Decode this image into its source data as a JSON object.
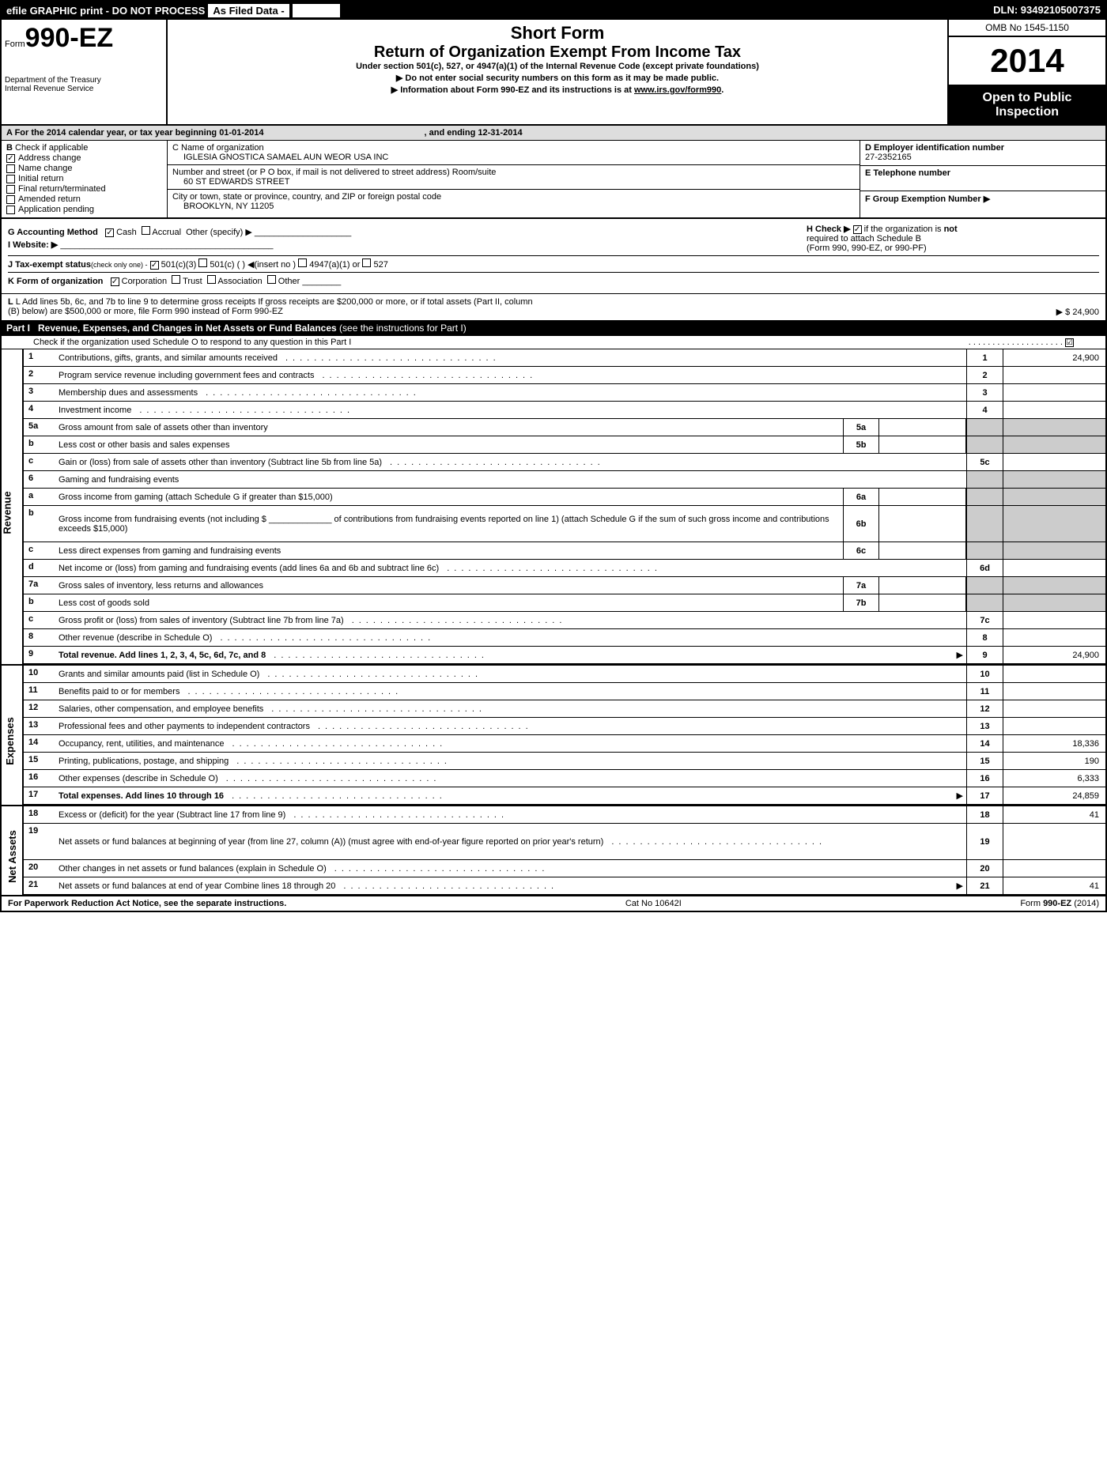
{
  "top_bar": {
    "efile": "efile GRAPHIC print - DO NOT PROCESS",
    "as_filed": "As Filed Data -",
    "dln": "DLN: 93492105007375"
  },
  "header": {
    "form_word": "Form",
    "form_number": "990-EZ",
    "dept1": "Department of the Treasury",
    "dept2": "Internal Revenue Service",
    "short_form": "Short Form",
    "title": "Return of Organization Exempt From Income Tax",
    "subtitle": "Under section 501(c), 527, or 4947(a)(1) of the Internal Revenue Code (except private foundations)",
    "warn1": "▶ Do not enter social security numbers on this form as it may be made public.",
    "warn2_pre": "▶ Information about Form 990-EZ and its instructions is at ",
    "warn2_link": "www.irs.gov/form990",
    "omb": "OMB No 1545-1150",
    "year": "2014",
    "open1": "Open to Public",
    "open2": "Inspection"
  },
  "row_a": {
    "text_left": "A  For the 2014 calendar year, or tax year beginning 01-01-2014",
    "text_right": ", and ending 12-31-2014"
  },
  "col_b": {
    "title": "B",
    "check_if": "Check if applicable",
    "items": [
      "Address change",
      "Name change",
      "Initial return",
      "Final return/terminated",
      "Amended return",
      "Application pending"
    ],
    "checked": [
      true,
      false,
      false,
      false,
      false,
      false
    ]
  },
  "col_c": {
    "name_label": "C Name of organization",
    "name": "IGLESIA GNOSTICA SAMAEL AUN WEOR USA INC",
    "street_label": "Number and street (or P O box, if mail is not delivered to street address) Room/suite",
    "street": "60 ST EDWARDS STREET",
    "city_label": "City or town, state or province, country, and ZIP or foreign postal code",
    "city": "BROOKLYN, NY  11205"
  },
  "col_def": {
    "d_label": "D Employer identification number",
    "d_val": "27-2352165",
    "e_label": "E Telephone number",
    "e_val": "",
    "f_label": "F Group Exemption Number  ▶",
    "f_val": ""
  },
  "middle": {
    "g": "G Accounting Method",
    "g_cash": "Cash",
    "g_accrual": "Accrual",
    "g_other": "Other (specify) ▶",
    "h_pre": "H  Check ▶",
    "h_post": "if the organization is",
    "h_not": "not",
    "h_line2": "required to attach Schedule B",
    "h_line3": "(Form 990, 990-EZ, or 990-PF)",
    "i": "I Website: ▶",
    "j_pre": "J Tax-exempt status",
    "j_note": "(check only one) -",
    "j_501c3": "501(c)(3)",
    "j_501c": "501(c) (   ) ◀(insert no )",
    "j_4947": "4947(a)(1) or",
    "j_527": "527",
    "k": "K Form of organization",
    "k_corp": "Corporation",
    "k_trust": "Trust",
    "k_assoc": "Association",
    "k_other": "Other",
    "l1": "L Add lines 5b, 6c, and 7b to line 9 to determine gross receipts  If gross receipts are $200,000 or more, or if total assets (Part II, column",
    "l2": "(B) below) are $500,000 or more, file Form 990 instead of Form 990-EZ",
    "l_amount": "▶ $ 24,900"
  },
  "part1": {
    "label": "Part I",
    "title": "Revenue, Expenses, and Changes in Net Assets or Fund Balances",
    "title_note": "(see the instructions for Part I)",
    "sub": "Check if the organization used Schedule O to respond to any question in this Part I",
    "sub_check": "☑"
  },
  "revenue_lines": [
    {
      "n": "1",
      "d": "Contributions, gifts, grants, and similar amounts received",
      "r": "1",
      "a": "24,900"
    },
    {
      "n": "2",
      "d": "Program service revenue including government fees and contracts",
      "r": "2",
      "a": ""
    },
    {
      "n": "3",
      "d": "Membership dues and assessments",
      "r": "3",
      "a": ""
    },
    {
      "n": "4",
      "d": "Investment income",
      "r": "4",
      "a": ""
    },
    {
      "n": "5a",
      "d": "Gross amount from sale of assets other than inventory",
      "sub": "5a",
      "subval": "",
      "gray": true
    },
    {
      "n": "b",
      "d": "Less  cost or other basis and sales expenses",
      "sub": "5b",
      "subval": "",
      "gray": true
    },
    {
      "n": "c",
      "d": "Gain or (loss) from sale of assets other than inventory (Subtract line 5b from line 5a)",
      "r": "5c",
      "a": ""
    },
    {
      "n": "6",
      "d": "Gaming and fundraising events",
      "gray": true,
      "noref": true
    },
    {
      "n": "a",
      "d": "Gross income from gaming (attach Schedule G if greater than $15,000)",
      "sub": "6a",
      "subval": "",
      "gray": true
    },
    {
      "n": "b",
      "d": "Gross income from fundraising events (not including $ _____________ of contributions from fundraising events reported on line 1) (attach Schedule G if the sum of such gross income and contributions exceeds $15,000)",
      "sub": "6b",
      "subval": "",
      "gray": true,
      "tall": true
    },
    {
      "n": "c",
      "d": "Less  direct expenses from gaming and fundraising events",
      "sub": "6c",
      "subval": "",
      "gray": true
    },
    {
      "n": "d",
      "d": "Net income or (loss) from gaming and fundraising events (add lines 6a and 6b and subtract line 6c)",
      "r": "6d",
      "a": ""
    },
    {
      "n": "7a",
      "d": "Gross sales of inventory, less returns and allowances",
      "sub": "7a",
      "subval": "",
      "gray": true
    },
    {
      "n": "b",
      "d": "Less  cost of goods sold",
      "sub": "7b",
      "subval": "",
      "gray": true
    },
    {
      "n": "c",
      "d": "Gross profit or (loss) from sales of inventory (Subtract line 7b from line 7a)",
      "r": "7c",
      "a": ""
    },
    {
      "n": "8",
      "d": "Other revenue (describe in Schedule O)",
      "r": "8",
      "a": ""
    },
    {
      "n": "9",
      "d": "Total revenue. Add lines 1, 2, 3, 4, 5c, 6d, 7c, and 8",
      "r": "9",
      "a": "24,900",
      "bold": true,
      "arrow": true
    }
  ],
  "expense_lines": [
    {
      "n": "10",
      "d": "Grants and similar amounts paid (list in Schedule O)",
      "r": "10",
      "a": ""
    },
    {
      "n": "11",
      "d": "Benefits paid to or for members",
      "r": "11",
      "a": ""
    },
    {
      "n": "12",
      "d": "Salaries, other compensation, and employee benefits",
      "r": "12",
      "a": ""
    },
    {
      "n": "13",
      "d": "Professional fees and other payments to independent contractors",
      "r": "13",
      "a": ""
    },
    {
      "n": "14",
      "d": "Occupancy, rent, utilities, and maintenance",
      "r": "14",
      "a": "18,336"
    },
    {
      "n": "15",
      "d": "Printing, publications, postage, and shipping",
      "r": "15",
      "a": "190"
    },
    {
      "n": "16",
      "d": "Other expenses (describe in Schedule O)",
      "r": "16",
      "a": "6,333"
    },
    {
      "n": "17",
      "d": "Total expenses. Add lines 10 through 16",
      "r": "17",
      "a": "24,859",
      "bold": true,
      "arrow": true
    }
  ],
  "netasset_lines": [
    {
      "n": "18",
      "d": "Excess or (deficit) for the year (Subtract line 17 from line 9)",
      "r": "18",
      "a": "41"
    },
    {
      "n": "19",
      "d": "Net assets or fund balances at beginning of year (from line 27, column (A)) (must agree with end-of-year figure reported on prior year's return)",
      "r": "19",
      "a": "",
      "tall": true
    },
    {
      "n": "20",
      "d": "Other changes in net assets or fund balances (explain in Schedule O)",
      "r": "20",
      "a": ""
    },
    {
      "n": "21",
      "d": "Net assets or fund balances at end of year Combine lines 18 through 20",
      "r": "21",
      "a": "41",
      "arrow": true
    }
  ],
  "footer": {
    "left": "For Paperwork Reduction Act Notice, see the separate instructions.",
    "mid": "Cat No 10642I",
    "right": "Form 990-EZ (2014)"
  },
  "side_labels": {
    "revenue": "Revenue",
    "expenses": "Expenses",
    "netassets": "Net Assets"
  }
}
